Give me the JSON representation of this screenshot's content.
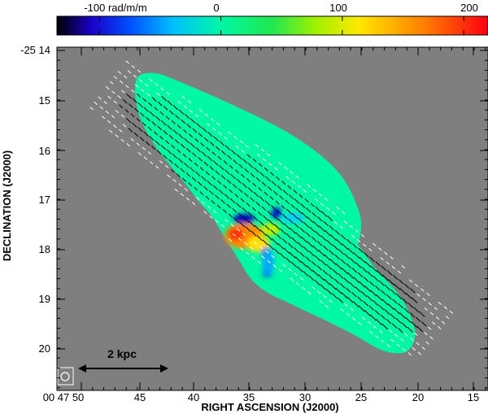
{
  "colorbar": {
    "labels": [
      "-100 rad/m/m",
      "0",
      "100",
      "200"
    ],
    "values": [
      -100,
      0,
      100,
      200
    ],
    "range": [
      -135,
      220
    ],
    "colors": [
      "#000000",
      "#1a00c8",
      "#0050ff",
      "#00c0ff",
      "#00f7a4",
      "#20e850",
      "#a0f000",
      "#ffe800",
      "#ff8000",
      "#ff0010"
    ]
  },
  "axes": {
    "x_title": "RIGHT ASCENSION (J2000)",
    "y_title": "DECLINATION (J2000)",
    "x_ticks": [
      "00 47 50",
      "45",
      "40",
      "35",
      "30",
      "25",
      "20",
      "15"
    ],
    "y_ticks": [
      "-25 14",
      "15",
      "16",
      "17",
      "18",
      "19",
      "20"
    ]
  },
  "scale_bar": {
    "label": "2 kpc"
  },
  "colors": {
    "background": "#7f7f7f",
    "galaxy_rm_near_zero": "#00f7a4",
    "vector_on_galaxy": "#000000",
    "vector_off_galaxy": "#ffffff"
  },
  "beam_icon": "circle-beam-icon"
}
